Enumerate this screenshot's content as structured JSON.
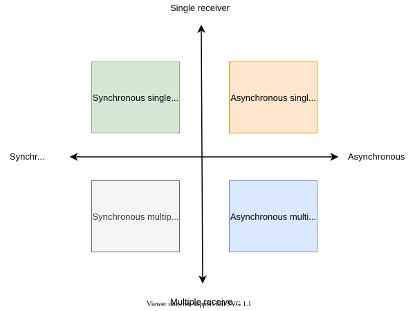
{
  "axes": {
    "top": "Single receiver",
    "bottom": "Multiple receive...",
    "left": "Synchr...",
    "right": "Asynchronous"
  },
  "quadrants": [
    {
      "label": "Synchronous single...",
      "fill": "#d5e8d4",
      "stroke": "#82b366"
    },
    {
      "label": "Asynchronous singl...",
      "fill": "#ffe6cc",
      "stroke": "#d79b00"
    },
    {
      "label": "Synchronous multip...",
      "fill": "#f5f5f5",
      "stroke": "#666666",
      "text_color": "#333333"
    },
    {
      "label": "Asynchronous multi...",
      "fill": "#dae8fc",
      "stroke": "#6c8ebf"
    }
  ],
  "footer": "Viewer does not support full SVG 1.1"
}
